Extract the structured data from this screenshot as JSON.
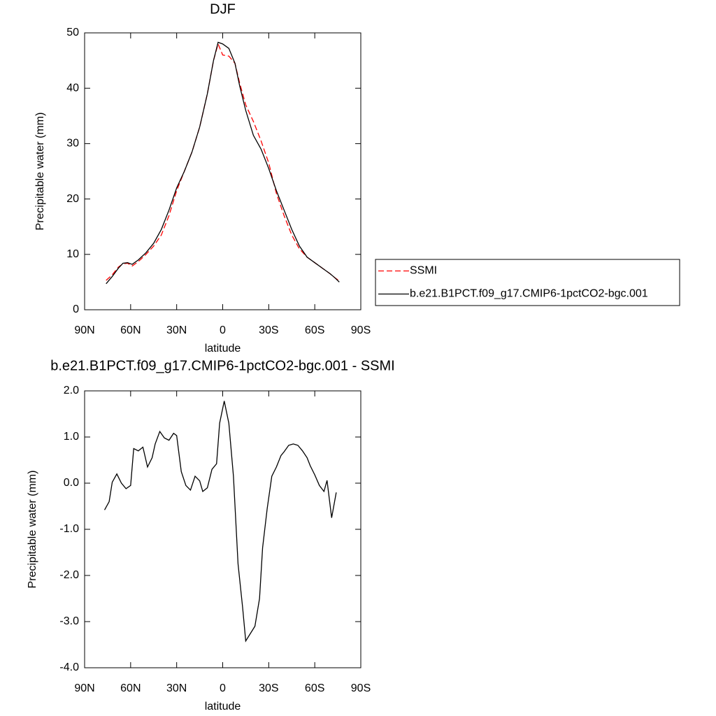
{
  "chart_data": [
    {
      "type": "line",
      "title": "DJF",
      "xlabel": "latitude",
      "ylabel": "Precipitable water (mm)",
      "x": [
        76,
        72,
        68,
        65,
        62,
        59,
        55,
        50,
        45,
        40,
        35,
        30,
        25,
        20,
        15,
        10,
        6,
        3,
        0,
        -4,
        -8,
        -11,
        -15,
        -20,
        -25,
        -30,
        -35,
        -40,
        -45,
        -50,
        -55,
        -60,
        -65,
        -70,
        -73,
        -76
      ],
      "series": [
        {
          "name": "SSMI",
          "color": "#ff0000",
          "line_style": "dashed",
          "values": [
            5.3,
            6.3,
            7.7,
            8.3,
            8.4,
            7.9,
            8.7,
            10.0,
            11.5,
            13.5,
            17.0,
            21.5,
            25.0,
            28.5,
            33.0,
            39.0,
            45.0,
            48.0,
            46.0,
            45.8,
            44.5,
            41.0,
            37.0,
            34.0,
            30.5,
            26.5,
            21.0,
            17.0,
            13.5,
            11.0,
            9.5,
            8.5,
            7.5,
            6.5,
            5.8,
            5.2
          ]
        },
        {
          "name": "b.e21.B1PCT.f09_g17.CMIP6-1pctCO2-bgc.001",
          "color": "#000000",
          "line_style": "solid",
          "values": [
            4.7,
            6.0,
            7.5,
            8.4,
            8.5,
            8.2,
            9.0,
            10.3,
            12.0,
            14.5,
            18.0,
            22.0,
            25.0,
            28.5,
            33.0,
            39.0,
            45.0,
            48.3,
            48.0,
            47.2,
            44.5,
            40.5,
            36.0,
            31.5,
            29.0,
            25.5,
            21.5,
            18.0,
            14.5,
            11.5,
            9.5,
            8.5,
            7.5,
            6.5,
            5.8,
            5.0
          ]
        }
      ],
      "xlim": [
        90,
        -90
      ],
      "xticks": [
        {
          "value": 90,
          "label": "90N"
        },
        {
          "value": 60,
          "label": "60N"
        },
        {
          "value": 30,
          "label": "30N"
        },
        0,
        {
          "value": -30,
          "label": "30S"
        },
        {
          "value": -60,
          "label": "60S"
        },
        {
          "value": -90,
          "label": "90S"
        }
      ],
      "ylim": [
        0,
        50
      ],
      "yticks": [
        0,
        10,
        20,
        30,
        40,
        50
      ],
      "legend": "right"
    },
    {
      "type": "line",
      "title": "b.e21.B1PCT.f09_g17.CMIP6-1pctCO2-bgc.001 - SSMI",
      "xlabel": "latitude",
      "ylabel": "Precipitable water (mm)",
      "x": [
        77,
        74,
        72,
        69,
        66,
        63,
        60,
        58,
        55,
        52,
        49,
        46,
        44,
        41,
        38,
        35,
        32,
        30,
        27,
        24,
        21,
        18,
        15,
        13,
        10,
        7,
        4,
        2,
        -1,
        -4,
        -7,
        -10,
        -13,
        -15,
        -21,
        -24,
        -26,
        -29,
        -32,
        -35,
        -38,
        -40,
        -43,
        -46,
        -49,
        -52,
        -55,
        -57,
        -60,
        -63,
        -66,
        -68,
        -71,
        -74
      ],
      "series": [
        {
          "name": "b.e21.B1PCT.f09_g17.CMIP6-1pctCO2-bgc.001 - SSMI",
          "color": "#000000",
          "line_style": "solid",
          "values": [
            -0.58,
            -0.4,
            0.02,
            0.2,
            0.0,
            -0.12,
            -0.05,
            0.75,
            0.7,
            0.78,
            0.35,
            0.55,
            0.85,
            1.12,
            0.98,
            0.93,
            1.08,
            1.03,
            0.25,
            -0.05,
            -0.15,
            0.15,
            0.05,
            -0.18,
            -0.1,
            0.3,
            0.42,
            1.3,
            1.78,
            1.3,
            0.15,
            -1.75,
            -2.7,
            -3.42,
            -3.1,
            -2.5,
            -1.4,
            -0.55,
            0.15,
            0.35,
            0.6,
            0.68,
            0.82,
            0.85,
            0.82,
            0.7,
            0.55,
            0.38,
            0.18,
            -0.05,
            -0.18,
            0.06,
            -0.75,
            -0.2
          ]
        }
      ],
      "xlim": [
        90,
        -90
      ],
      "xticks": [
        {
          "value": 90,
          "label": "90N"
        },
        {
          "value": 60,
          "label": "60N"
        },
        {
          "value": 30,
          "label": "30N"
        },
        0,
        {
          "value": -30,
          "label": "30S"
        },
        {
          "value": -60,
          "label": "60S"
        },
        {
          "value": -90,
          "label": "90S"
        }
      ],
      "ylim": [
        -4,
        2
      ],
      "yticks": [
        {
          "value": -4,
          "label": "-4.0"
        },
        {
          "value": -3,
          "label": "-3.0"
        },
        {
          "value": -2,
          "label": "-2.0"
        },
        {
          "value": -1,
          "label": "-1.0"
        },
        {
          "value": 0,
          "label": "0.0"
        },
        {
          "value": 1,
          "label": "1.0"
        },
        {
          "value": 2,
          "label": "2.0"
        }
      ]
    }
  ]
}
